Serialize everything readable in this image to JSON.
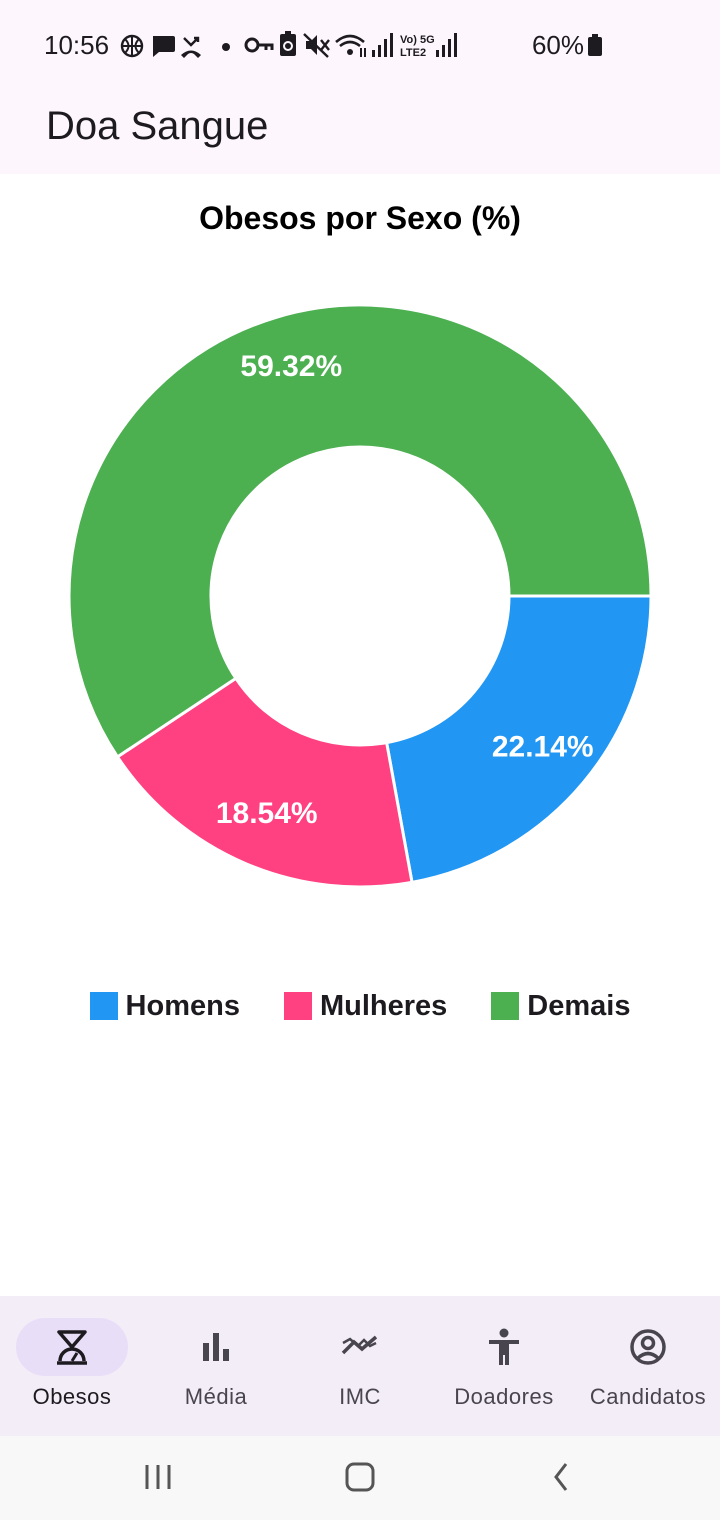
{
  "status_bar": {
    "time": "10:56",
    "battery": "60%",
    "left_icons": [
      "basketball-icon",
      "chat-bubble-icon",
      "missed-call-icon",
      "dot-icon"
    ],
    "right_icons": [
      "key-icon",
      "battery-saver-icon",
      "mute-icon",
      "wifi-icon",
      "signal-icon",
      "volte-lte2-icon",
      "signal-icon",
      "battery-icon"
    ]
  },
  "app_bar": {
    "title": "Doa Sangue"
  },
  "chart_data": {
    "type": "pie",
    "title": "Obesos por Sexo (%)",
    "categories": [
      "Homens",
      "Mulheres",
      "Demais"
    ],
    "values": [
      22.14,
      18.54,
      59.32
    ],
    "data_labels": [
      "22.14%",
      "18.54%",
      "59.32%"
    ],
    "colors": [
      "#2196f3",
      "#ff4081",
      "#4caf50"
    ],
    "donut": true,
    "legend_position": "bottom"
  },
  "bottom_nav": {
    "items": [
      {
        "label": "Obesos",
        "icon": "scale-icon",
        "active": true
      },
      {
        "label": "Média",
        "icon": "bar-chart-icon",
        "active": false
      },
      {
        "label": "IMC",
        "icon": "trending-icon",
        "active": false
      },
      {
        "label": "Doadores",
        "icon": "person-icon",
        "active": false
      },
      {
        "label": "Candidatos",
        "icon": "account-circle-icon",
        "active": false
      }
    ]
  },
  "system_nav": {
    "icons": [
      "recent-apps-icon",
      "home-icon",
      "back-icon"
    ]
  }
}
